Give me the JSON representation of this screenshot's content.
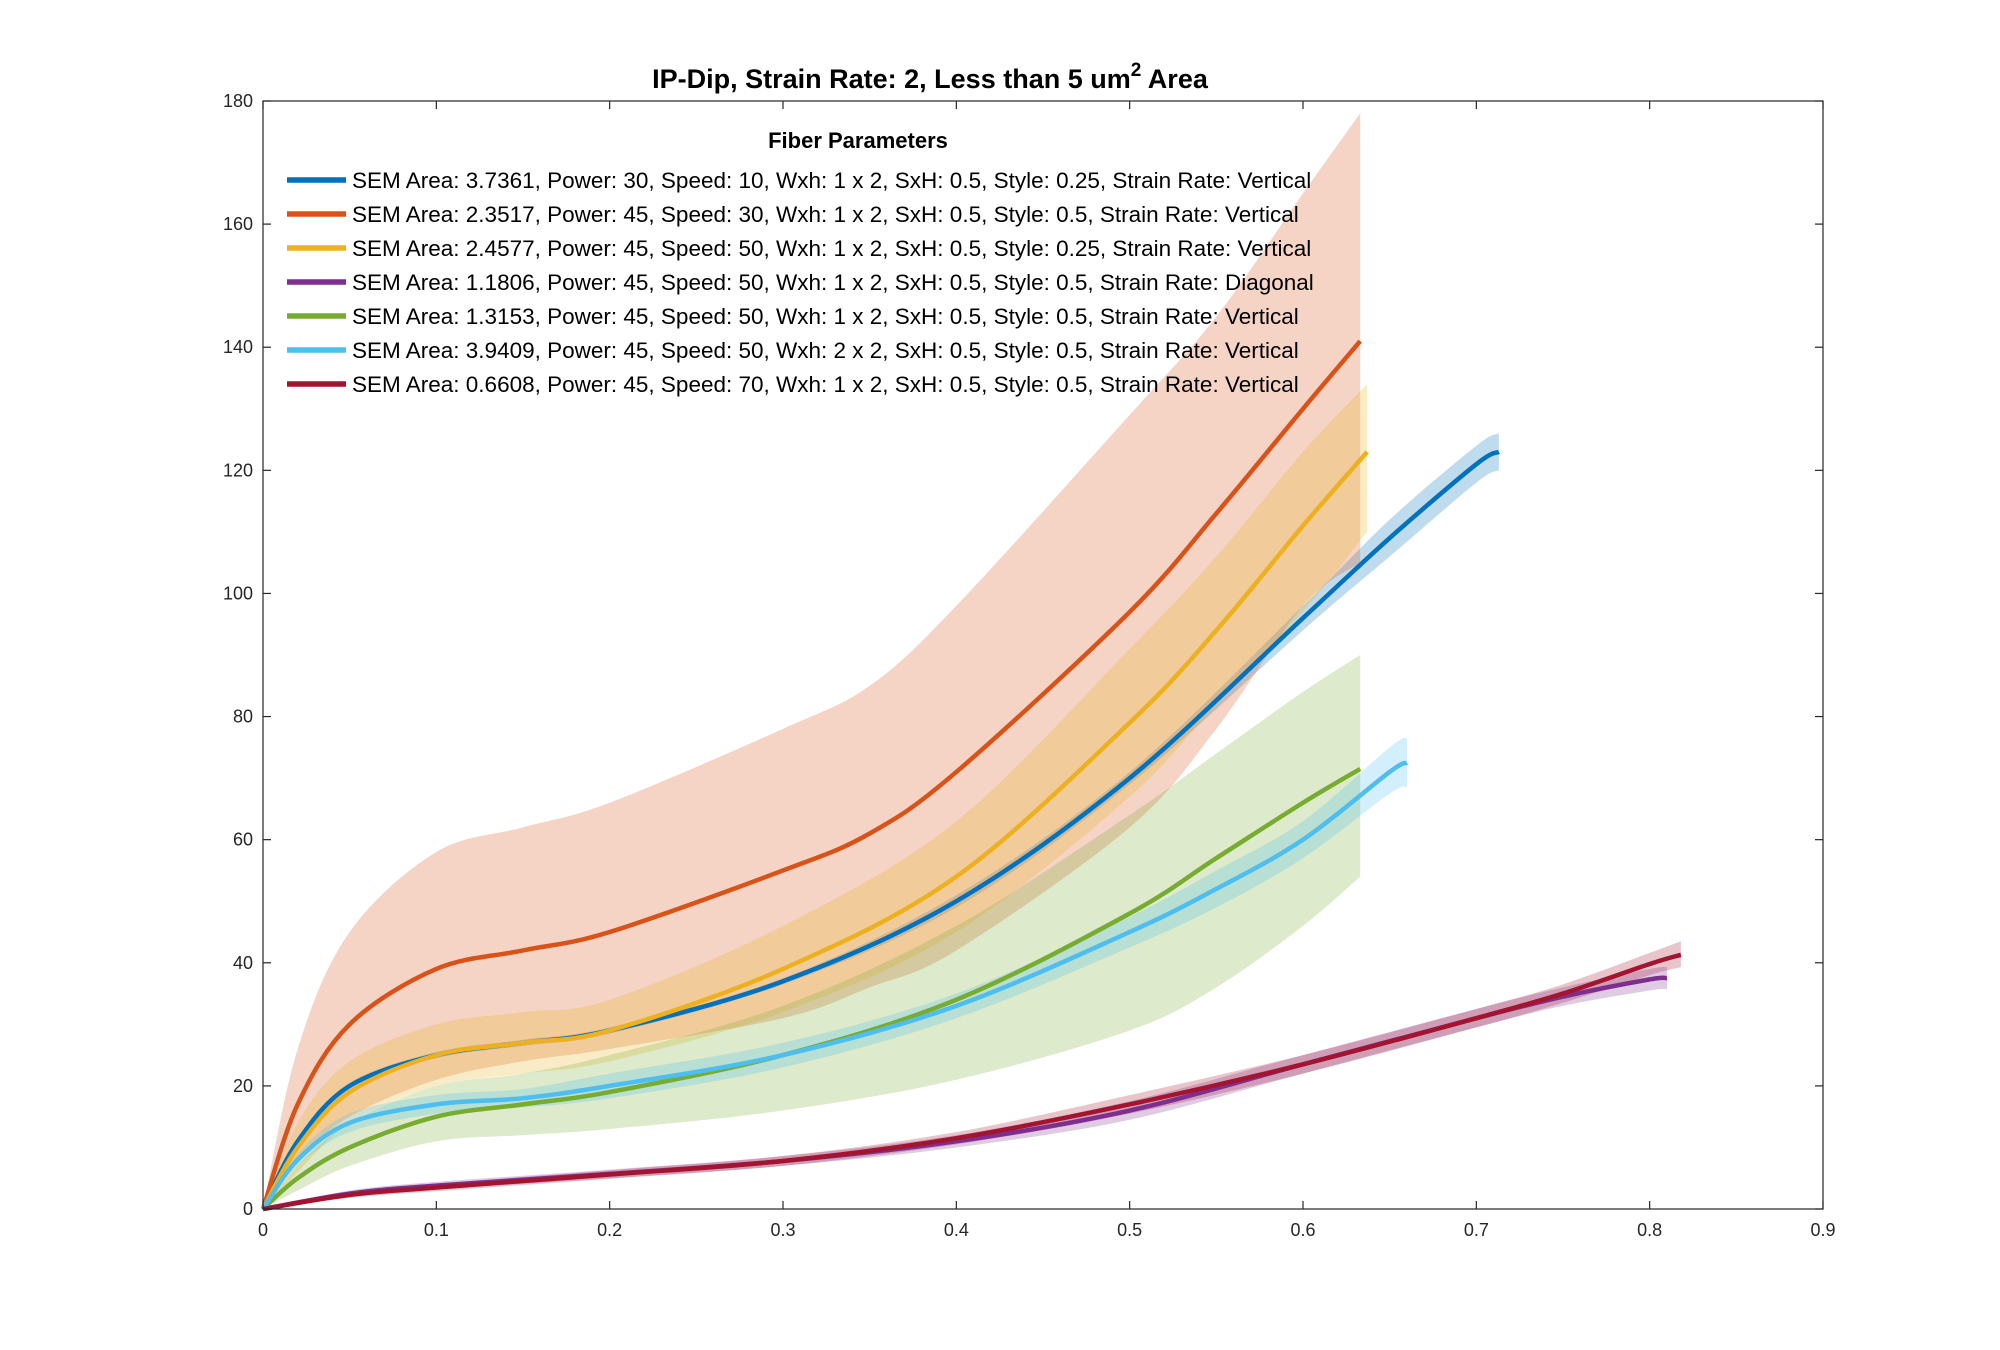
{
  "chart_data": {
    "type": "line",
    "title": "IP-Dip, Strain Rate: 2, Less than 5 um",
    "title_sup": "2",
    "title_suffix": " Area",
    "xlabel": "",
    "ylabel": "",
    "xlim": [
      0,
      0.9
    ],
    "ylim": [
      0,
      180
    ],
    "xticks": [
      0,
      0.1,
      0.2,
      0.3,
      0.4,
      0.5,
      0.6,
      0.7,
      0.8,
      0.9
    ],
    "yticks": [
      0,
      20,
      40,
      60,
      80,
      100,
      120,
      140,
      160,
      180
    ],
    "xtick_labels": [
      "0",
      "0.1",
      "0.2",
      "0.3",
      "0.4",
      "0.5",
      "0.6",
      "0.7",
      "0.8",
      "0.9"
    ],
    "ytick_labels": [
      "0",
      "20",
      "40",
      "60",
      "80",
      "100",
      "120",
      "140",
      "160",
      "180"
    ],
    "grid": false,
    "legend": {
      "title": "Fiber Parameters",
      "placement": "top-left"
    },
    "series": [
      {
        "name": "SEM Area: 3.7361, Power: 30, Speed: 10, Wxh: 1 x 2, SxH: 0.5, Style: 0.25, Strain Rate: Vertical",
        "color": "#0072BD",
        "x": [
          0,
          0.02,
          0.05,
          0.1,
          0.15,
          0.2,
          0.3,
          0.4,
          0.5,
          0.6,
          0.65,
          0.7,
          0.713
        ],
        "y": [
          0,
          11,
          20,
          25,
          27,
          29,
          37,
          50,
          70,
          96,
          109,
          121,
          123
        ],
        "lower": [
          0,
          10.5,
          19.5,
          24.5,
          26.5,
          28.5,
          36.5,
          49,
          69,
          94,
          106,
          118,
          120
        ],
        "upper": [
          0,
          11.5,
          20.5,
          25.5,
          27.5,
          29.5,
          37.5,
          51,
          71,
          98,
          112,
          124,
          126
        ]
      },
      {
        "name": "SEM Area: 2.3517, Power: 45, Speed: 30, Wxh: 1 x 2, SxH: 0.5, Style: 0.5, Strain Rate: Vertical",
        "color": "#D95319",
        "x": [
          0,
          0.02,
          0.05,
          0.1,
          0.15,
          0.2,
          0.3,
          0.35,
          0.4,
          0.5,
          0.55,
          0.6,
          0.633
        ],
        "y": [
          0,
          17,
          30,
          39,
          42,
          45,
          55,
          61,
          71,
          97,
          113,
          130,
          141
        ],
        "lower": [
          0,
          8,
          15,
          21,
          24,
          26,
          31,
          36,
          42,
          62,
          78,
          98,
          105
        ],
        "upper": [
          0,
          26,
          45,
          58,
          62,
          66,
          78,
          85,
          98,
          129,
          145,
          165,
          178
        ]
      },
      {
        "name": "SEM Area: 2.4577, Power: 45, Speed: 50, Wxh: 1 x 2, SxH: 0.5, Style: 0.25, Strain Rate: Vertical",
        "color": "#EDB120",
        "x": [
          0,
          0.02,
          0.05,
          0.1,
          0.15,
          0.2,
          0.3,
          0.4,
          0.5,
          0.55,
          0.6,
          0.637
        ],
        "y": [
          0,
          10,
          19,
          25,
          27,
          29,
          39,
          54,
          79,
          94,
          111,
          123
        ],
        "lower": [
          0,
          6,
          14,
          20,
          22,
          24,
          32,
          45,
          67,
          82,
          97,
          110
        ],
        "upper": [
          0,
          14,
          24,
          30,
          32,
          34,
          46,
          63,
          91,
          106,
          123,
          134
        ]
      },
      {
        "name": "SEM Area: 1.1806, Power: 45, Speed: 50, Wxh: 1 x 2, SxH: 0.5, Style: 0.5, Strain Rate: Diagonal",
        "color": "#7E2F8E",
        "x": [
          0,
          0.05,
          0.1,
          0.2,
          0.3,
          0.4,
          0.5,
          0.6,
          0.7,
          0.75,
          0.8,
          0.81
        ],
        "y": [
          0,
          2.5,
          3.8,
          5.7,
          7.8,
          11,
          16,
          23.5,
          31,
          34.5,
          37.3,
          37.5
        ],
        "lower": [
          0,
          2,
          3.2,
          5,
          7,
          10,
          14.5,
          22,
          29.5,
          33,
          35.5,
          35.7
        ],
        "upper": [
          0,
          3,
          4.4,
          6.4,
          8.6,
          12,
          17.5,
          25,
          32.5,
          36,
          39,
          39.3
        ]
      },
      {
        "name": "SEM Area: 1.3153, Power: 45, Speed: 50, Wxh: 1 x 2, SxH: 0.5, Style: 0.5, Strain Rate: Vertical",
        "color": "#77AC30",
        "x": [
          0,
          0.02,
          0.05,
          0.1,
          0.15,
          0.2,
          0.3,
          0.4,
          0.5,
          0.55,
          0.6,
          0.633
        ],
        "y": [
          0,
          5,
          10,
          15,
          17,
          19,
          25,
          34,
          48,
          57,
          66,
          71.5
        ],
        "lower": [
          0,
          3,
          7,
          11,
          12,
          13,
          16,
          21,
          29,
          36,
          46,
          54
        ],
        "upper": [
          0,
          7,
          14,
          20,
          22,
          25,
          33,
          46,
          64,
          74,
          84,
          90
        ]
      },
      {
        "name": "SEM Area: 3.9409, Power: 45, Speed: 50, Wxh: 2 x 2, SxH: 0.5, Style: 0.5, Strain Rate: Vertical",
        "color": "#4DBEEE",
        "x": [
          0,
          0.02,
          0.05,
          0.1,
          0.15,
          0.2,
          0.3,
          0.4,
          0.5,
          0.55,
          0.6,
          0.65,
          0.66
        ],
        "y": [
          0,
          8,
          14,
          17,
          18,
          20,
          25,
          33,
          45,
          52,
          60,
          71,
          72.5
        ],
        "lower": [
          0,
          7,
          12.5,
          15.5,
          16.5,
          18,
          23,
          31,
          42.5,
          49,
          57,
          67.5,
          68.5
        ],
        "upper": [
          0,
          9,
          15.5,
          18.5,
          19.5,
          22,
          27,
          35,
          47.5,
          55,
          63,
          75,
          76.5
        ]
      },
      {
        "name": "SEM Area: 0.6608, Power: 45, Speed: 70, Wxh: 1 x 2, SxH: 0.5, Style: 0.5, Strain Rate: Vertical",
        "color": "#A2142F",
        "x": [
          0,
          0.05,
          0.1,
          0.2,
          0.3,
          0.4,
          0.5,
          0.6,
          0.7,
          0.75,
          0.8,
          0.818
        ],
        "y": [
          0,
          2.3,
          3.5,
          5.6,
          7.8,
          11.5,
          17,
          23.5,
          31,
          35,
          39.8,
          41.3
        ],
        "lower": [
          0,
          1.8,
          2.9,
          4.9,
          7,
          10.5,
          15.5,
          22,
          29.5,
          33.5,
          38,
          39.3
        ],
        "upper": [
          0,
          2.8,
          4.1,
          6.3,
          8.6,
          12.5,
          18.5,
          25,
          32.5,
          36.5,
          41.6,
          43.5
        ]
      }
    ]
  }
}
